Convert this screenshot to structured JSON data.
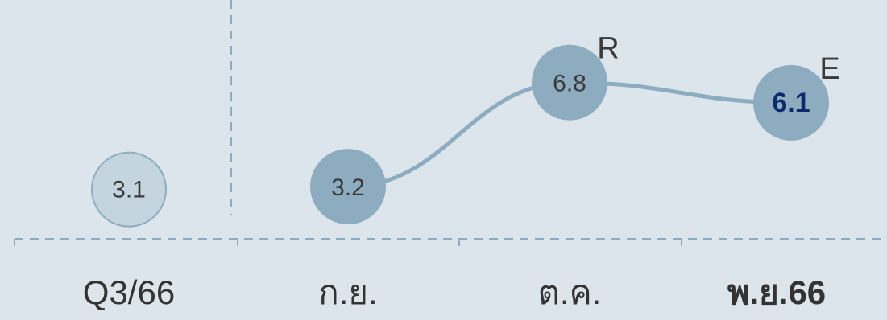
{
  "chart_data": {
    "type": "line",
    "categories": [
      "Q3/66",
      "ก.ย.",
      "ต.ค.",
      "พ.ย.66"
    ],
    "separate_point": {
      "category": "Q3/66",
      "value": 3.1,
      "label": "3.1"
    },
    "series": [
      {
        "points": [
          {
            "category": "ก.ย.",
            "value": 3.2,
            "label": "3.2",
            "tag": ""
          },
          {
            "category": "ต.ค.",
            "value": 6.8,
            "label": "6.8",
            "tag": "R"
          },
          {
            "category": "พ.ย.66",
            "value": 6.1,
            "label": "6.1",
            "tag": "E"
          }
        ]
      }
    ],
    "highlight_category": "พ.ย.66",
    "ylim": [
      2.2,
      8.6
    ],
    "grid": false,
    "colors": {
      "background": "#dce5ec",
      "line": "#8eacc0",
      "marker": "#8eacc0",
      "separate_marker_fill": "#c5d5e0",
      "separate_marker_stroke": "#8eacc0",
      "axis": "#8eacc0",
      "label_text": "#3a3a3a",
      "highlight_label_text": "#0c2a6b",
      "category_text": "#333333"
    }
  }
}
